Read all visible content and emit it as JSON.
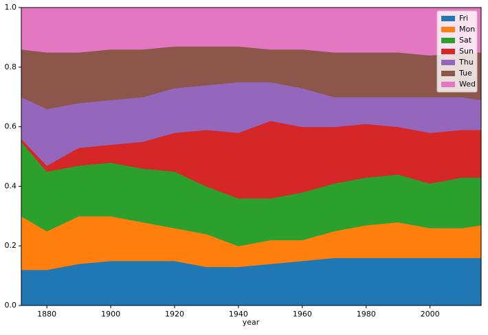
{
  "chart_data": {
    "type": "stacked_area",
    "x_label": "year",
    "x": [
      1872,
      1880,
      1890,
      1900,
      1910,
      1920,
      1930,
      1940,
      1950,
      1960,
      1970,
      1980,
      1990,
      2000,
      2010,
      2016
    ],
    "series": [
      {
        "name": "Fri",
        "color": "#1f77b4",
        "values": [
          0.12,
          0.12,
          0.14,
          0.15,
          0.15,
          0.15,
          0.13,
          0.13,
          0.14,
          0.15,
          0.16,
          0.16,
          0.16,
          0.16,
          0.16,
          0.16
        ]
      },
      {
        "name": "Mon",
        "color": "#ff7f0e",
        "values": [
          0.18,
          0.13,
          0.16,
          0.15,
          0.13,
          0.11,
          0.11,
          0.07,
          0.08,
          0.07,
          0.09,
          0.11,
          0.12,
          0.1,
          0.1,
          0.11
        ]
      },
      {
        "name": "Sat",
        "color": "#2ca02c",
        "values": [
          0.25,
          0.2,
          0.17,
          0.18,
          0.18,
          0.19,
          0.16,
          0.16,
          0.14,
          0.16,
          0.16,
          0.16,
          0.16,
          0.15,
          0.17,
          0.16
        ]
      },
      {
        "name": "Sun",
        "color": "#d62728",
        "values": [
          0.01,
          0.02,
          0.06,
          0.06,
          0.09,
          0.13,
          0.19,
          0.22,
          0.26,
          0.22,
          0.19,
          0.18,
          0.16,
          0.17,
          0.16,
          0.16
        ]
      },
      {
        "name": "Thu",
        "color": "#9467bd",
        "values": [
          0.14,
          0.19,
          0.15,
          0.15,
          0.15,
          0.15,
          0.15,
          0.17,
          0.13,
          0.13,
          0.1,
          0.09,
          0.1,
          0.12,
          0.11,
          0.1
        ]
      },
      {
        "name": "Tue",
        "color": "#8c564b",
        "values": [
          0.16,
          0.19,
          0.17,
          0.17,
          0.16,
          0.14,
          0.13,
          0.12,
          0.11,
          0.13,
          0.15,
          0.15,
          0.15,
          0.14,
          0.15,
          0.16
        ]
      },
      {
        "name": "Wed",
        "color": "#e377c2",
        "values": [
          0.14,
          0.15,
          0.15,
          0.14,
          0.14,
          0.13,
          0.13,
          0.13,
          0.14,
          0.14,
          0.15,
          0.15,
          0.15,
          0.16,
          0.15,
          0.15
        ]
      }
    ],
    "xlim": [
      1872,
      2016
    ],
    "xticks": [
      1880,
      1900,
      1920,
      1940,
      1960,
      1980,
      2000
    ],
    "ylim": [
      0,
      1
    ],
    "yticks": [
      {
        "value": 0,
        "label": "0.0"
      },
      0.2,
      0.4,
      0.6,
      0.8,
      {
        "value": 1,
        "label": "1.0"
      }
    ],
    "legend": "upper right",
    "grid": false
  }
}
